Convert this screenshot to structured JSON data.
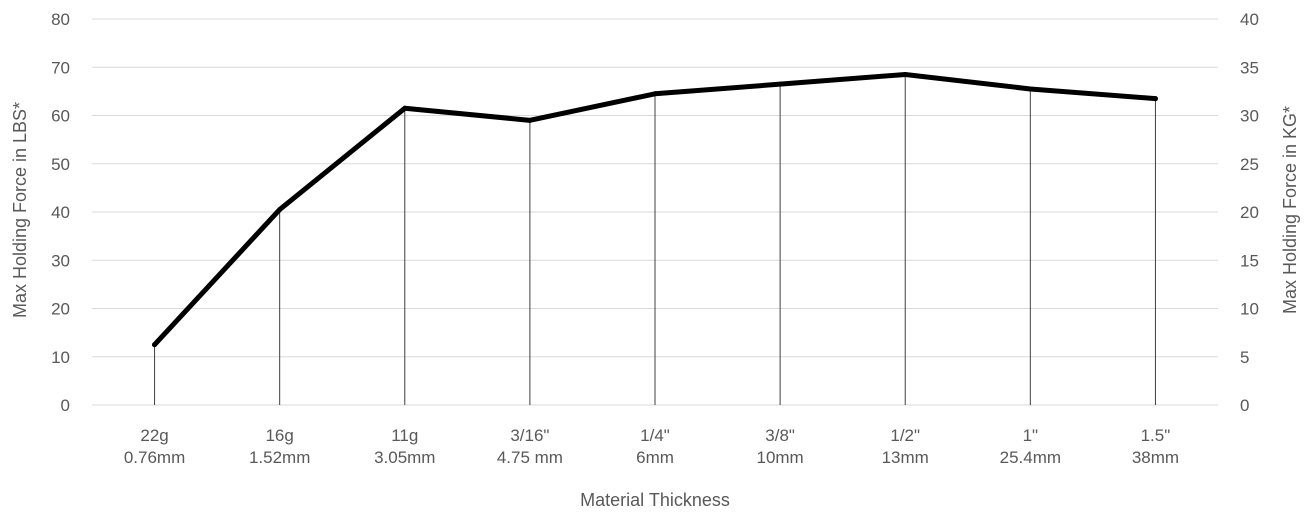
{
  "chart_data": {
    "type": "line",
    "categories": [
      [
        "22g",
        "0.76mm"
      ],
      [
        "16g",
        "1.52mm"
      ],
      [
        "11g",
        "3.05mm"
      ],
      [
        "3/16\"",
        "4.75 mm"
      ],
      [
        "1/4\"",
        "6mm"
      ],
      [
        "3/8\"",
        "10mm"
      ],
      [
        "1/2\"",
        "13mm"
      ],
      [
        "1\"",
        "25.4mm"
      ],
      [
        "1.5\"",
        "38mm"
      ]
    ],
    "series": [
      {
        "values": [
          12.5,
          40.5,
          61.5,
          59,
          64.5,
          66.5,
          68.5,
          65.5,
          63.5
        ]
      }
    ],
    "xlabel": "Material Thickness",
    "ylabel": "Max Holding Force in LBS*",
    "y2label": "Max Holding Force in KG*",
    "ylim": [
      0,
      80
    ],
    "y2lim": [
      0,
      40
    ],
    "yticks": [
      0,
      10,
      20,
      30,
      40,
      50,
      60,
      70,
      80
    ],
    "y2ticks": [
      0,
      5,
      10,
      15,
      20,
      25,
      30,
      35,
      40
    ],
    "grid": true,
    "drop_lines": true,
    "line_color": "#000000"
  }
}
